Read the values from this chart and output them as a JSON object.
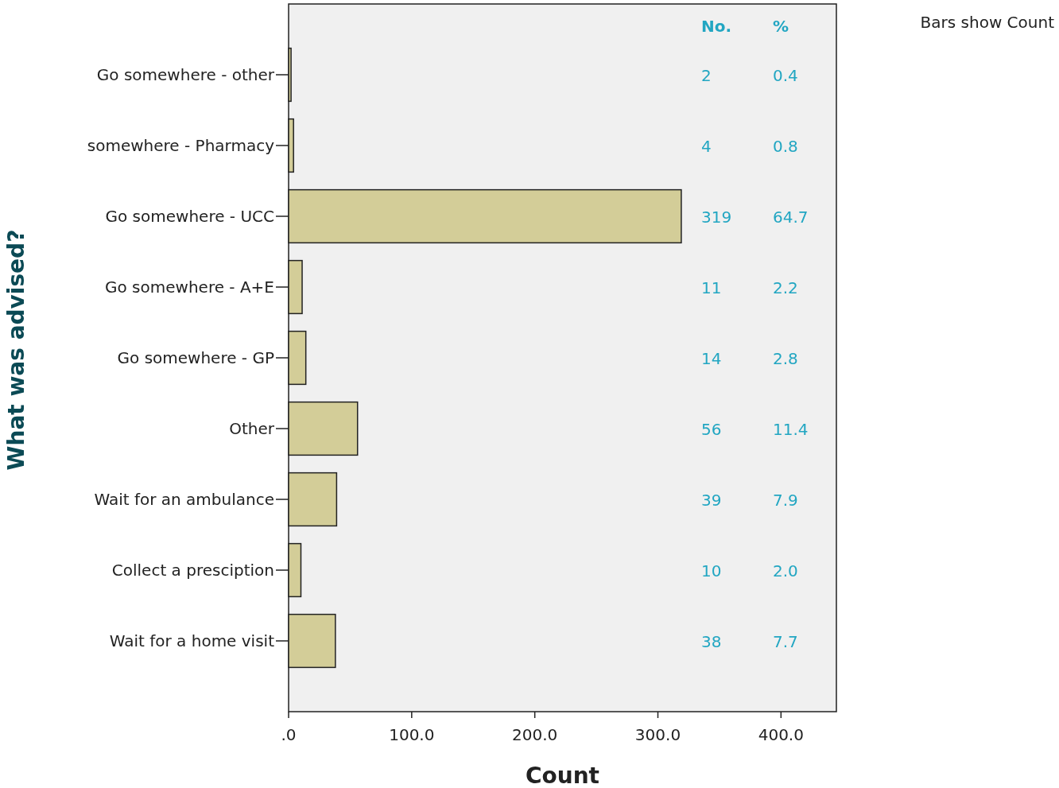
{
  "chart_data": {
    "type": "bar",
    "orientation": "horizontal",
    "xlabel": "Count",
    "ylabel": "What was advised?",
    "categories": [
      "Go somewhere - other",
      "somewhere - Pharmacy",
      "Go somewhere - UCC",
      "Go somewhere - A+E",
      "Go somewhere - GP",
      "Other",
      "Wait for an ambulance",
      "Collect a presciption",
      "Wait for a home visit"
    ],
    "values": [
      2,
      4,
      319,
      11,
      14,
      56,
      39,
      10,
      38
    ],
    "color": "#d3cd98",
    "xlim": [
      0,
      445
    ],
    "xticks": [
      {
        "value": 0,
        "label": ".0"
      },
      {
        "value": 100,
        "label": "100.0"
      },
      {
        "value": 200,
        "label": "200.0"
      },
      {
        "value": 300,
        "label": "300.0"
      },
      {
        "value": 400,
        "label": "400.0"
      }
    ],
    "grid": false,
    "annotations": [
      "No.",
      "%",
      "Bars show Count",
      "2",
      "0.4",
      "4",
      "0.8",
      "319",
      "64.7",
      "11",
      "2.2",
      "14",
      "2.8",
      "56",
      "11.4",
      "39",
      "7.9",
      "10",
      "2.0",
      "38",
      "7.7"
    ]
  }
}
